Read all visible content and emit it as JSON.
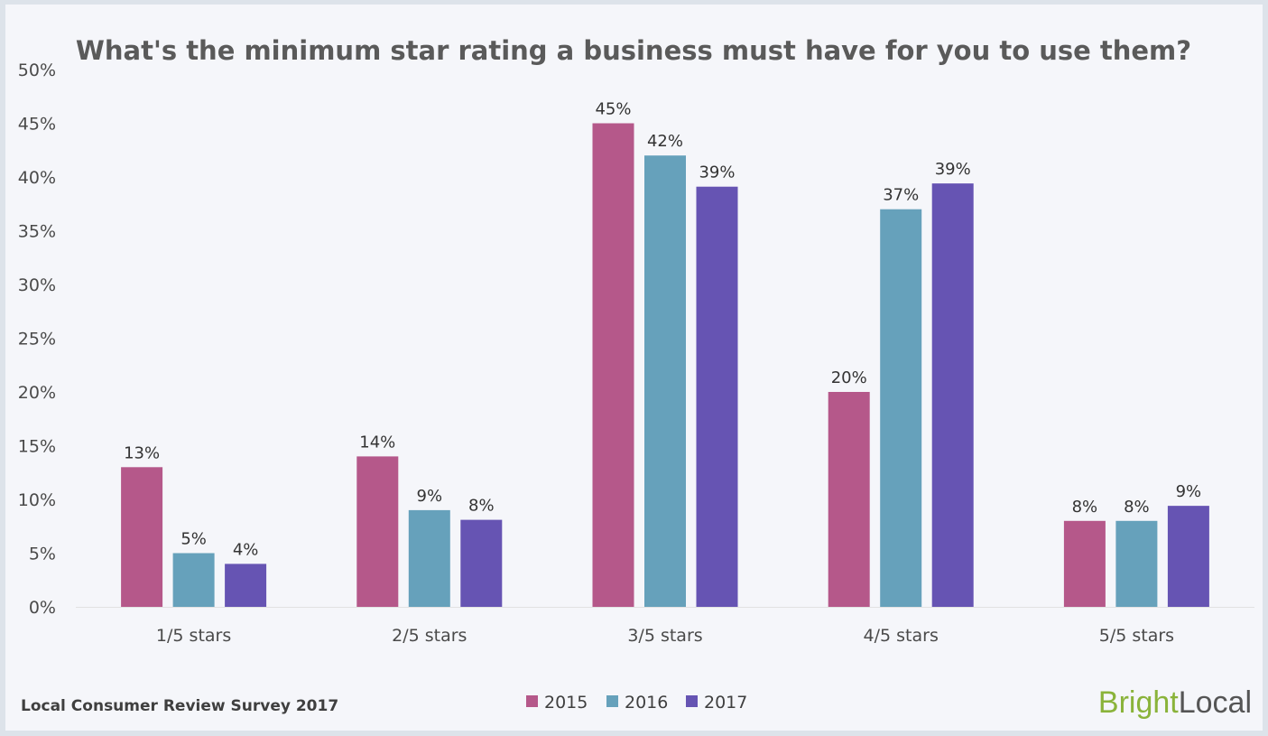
{
  "chart_data": {
    "type": "bar",
    "title": "What's the minimum star rating a business must have for you to use them?",
    "categories": [
      "1/5 stars",
      "2/5 stars",
      "3/5 stars",
      "4/5 stars",
      "5/5 stars"
    ],
    "series": [
      {
        "name": "2015",
        "color": "#b5588a",
        "values": [
          13,
          14,
          45,
          20,
          8
        ]
      },
      {
        "name": "2016",
        "color": "#66a1bb",
        "values": [
          5,
          9,
          42,
          37,
          8
        ]
      },
      {
        "name": "2017",
        "color": "#6654b3",
        "values": [
          4,
          8,
          39,
          39,
          9
        ]
      }
    ],
    "data_labels": [
      [
        "13%",
        "14%",
        "45%",
        "20%",
        "8%"
      ],
      [
        "5%",
        "9%",
        "42%",
        "37%",
        "8%"
      ],
      [
        "4%",
        "8%",
        "39%",
        "39%",
        "9%"
      ]
    ],
    "plotted_values": [
      [
        13,
        14,
        45,
        20,
        8
      ],
      [
        5,
        9,
        42,
        37,
        8
      ],
      [
        4,
        8.1,
        39.1,
        39.4,
        9.4
      ]
    ],
    "ylim": [
      0,
      50
    ],
    "yticks": [
      0,
      5,
      10,
      15,
      20,
      25,
      30,
      35,
      40,
      45,
      50
    ],
    "ytick_labels": [
      "0%",
      "5%",
      "10%",
      "15%",
      "20%",
      "25%",
      "30%",
      "35%",
      "40%",
      "45%",
      "50%"
    ],
    "xlabel": "",
    "ylabel": "",
    "grid": false,
    "legend_position": "bottom-center"
  },
  "footer": {
    "source": "Local Consumer Review Survey 2017",
    "brand_part1": "Bright",
    "brand_part2": "Local"
  },
  "colors": {
    "background": "#f5f6fa",
    "frame": "#dde3ea",
    "brand_green": "#8ab33a",
    "brand_gray": "#555555"
  }
}
